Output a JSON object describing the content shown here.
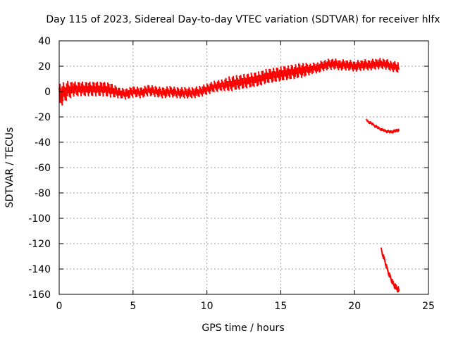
{
  "chart_data": {
    "type": "scatter",
    "title": "Day 115 of 2023, Sidereal Day-to-day VTEC variation (SDTVAR) for receiver hlfx",
    "xlabel": "GPS time / hours",
    "ylabel": "SDTVAR / TECUs",
    "xlim": [
      0,
      25
    ],
    "ylim": [
      -160,
      40
    ],
    "xticks": [
      0,
      5,
      10,
      15,
      20,
      25
    ],
    "yticks": [
      40,
      20,
      0,
      -20,
      -40,
      -60,
      -80,
      -100,
      -120,
      -140,
      -160
    ],
    "grid": true,
    "color": "#ff0000",
    "series": [
      {
        "x": [
          0.0,
          0.2,
          0.5,
          1.0,
          1.5,
          2.0,
          2.5,
          3.0,
          3.5,
          4.0,
          4.5,
          5.0,
          5.5,
          6.0,
          6.5,
          7.0,
          7.5,
          8.0,
          8.5,
          9.0,
          9.5,
          10.0,
          10.5,
          11.0,
          11.5,
          12.0,
          12.5,
          13.0,
          13.5,
          14.0,
          14.5,
          15.0,
          15.5,
          16.0,
          16.5,
          17.0,
          17.5,
          18.0,
          18.5,
          19.0,
          19.5,
          20.0,
          20.5,
          21.0,
          21.5,
          22.0,
          22.5,
          23.0
        ],
        "y": [
          -3,
          -2,
          1,
          2,
          2,
          2,
          2,
          2,
          1,
          -1,
          -2,
          0,
          -1,
          1,
          0,
          -1,
          0,
          -1,
          -1,
          -1,
          0,
          2,
          4,
          5,
          6,
          7,
          8,
          9,
          10,
          12,
          13,
          14,
          15,
          16,
          17,
          18,
          19,
          21,
          22,
          21,
          21,
          20,
          21,
          21,
          22,
          22,
          20,
          19
        ],
        "band": [
          6,
          6,
          5,
          4,
          4,
          4,
          4,
          4,
          4,
          3,
          3,
          3,
          3,
          3,
          3,
          3,
          3,
          3,
          3,
          3,
          3,
          3,
          3,
          3,
          4,
          4,
          4,
          4,
          4,
          4,
          4,
          4,
          4,
          4,
          4,
          3,
          3,
          3,
          3,
          3,
          3,
          3,
          3,
          3,
          3,
          3,
          3,
          3
        ]
      },
      {
        "x": [
          20.8,
          21.2,
          21.6,
          22.0,
          22.4,
          22.8,
          23.0
        ],
        "y": [
          -23,
          -26,
          -29,
          -31,
          -32,
          -31,
          -30
        ],
        "band": [
          1,
          1,
          1,
          1,
          1,
          1,
          1
        ]
      },
      {
        "x": [
          21.8,
          22.0,
          22.2,
          22.4,
          22.6,
          22.8,
          23.0
        ],
        "y": [
          -126,
          -133,
          -141,
          -147,
          -152,
          -155,
          -157
        ],
        "band": [
          2,
          2,
          2,
          2,
          2,
          2,
          2
        ]
      }
    ]
  }
}
